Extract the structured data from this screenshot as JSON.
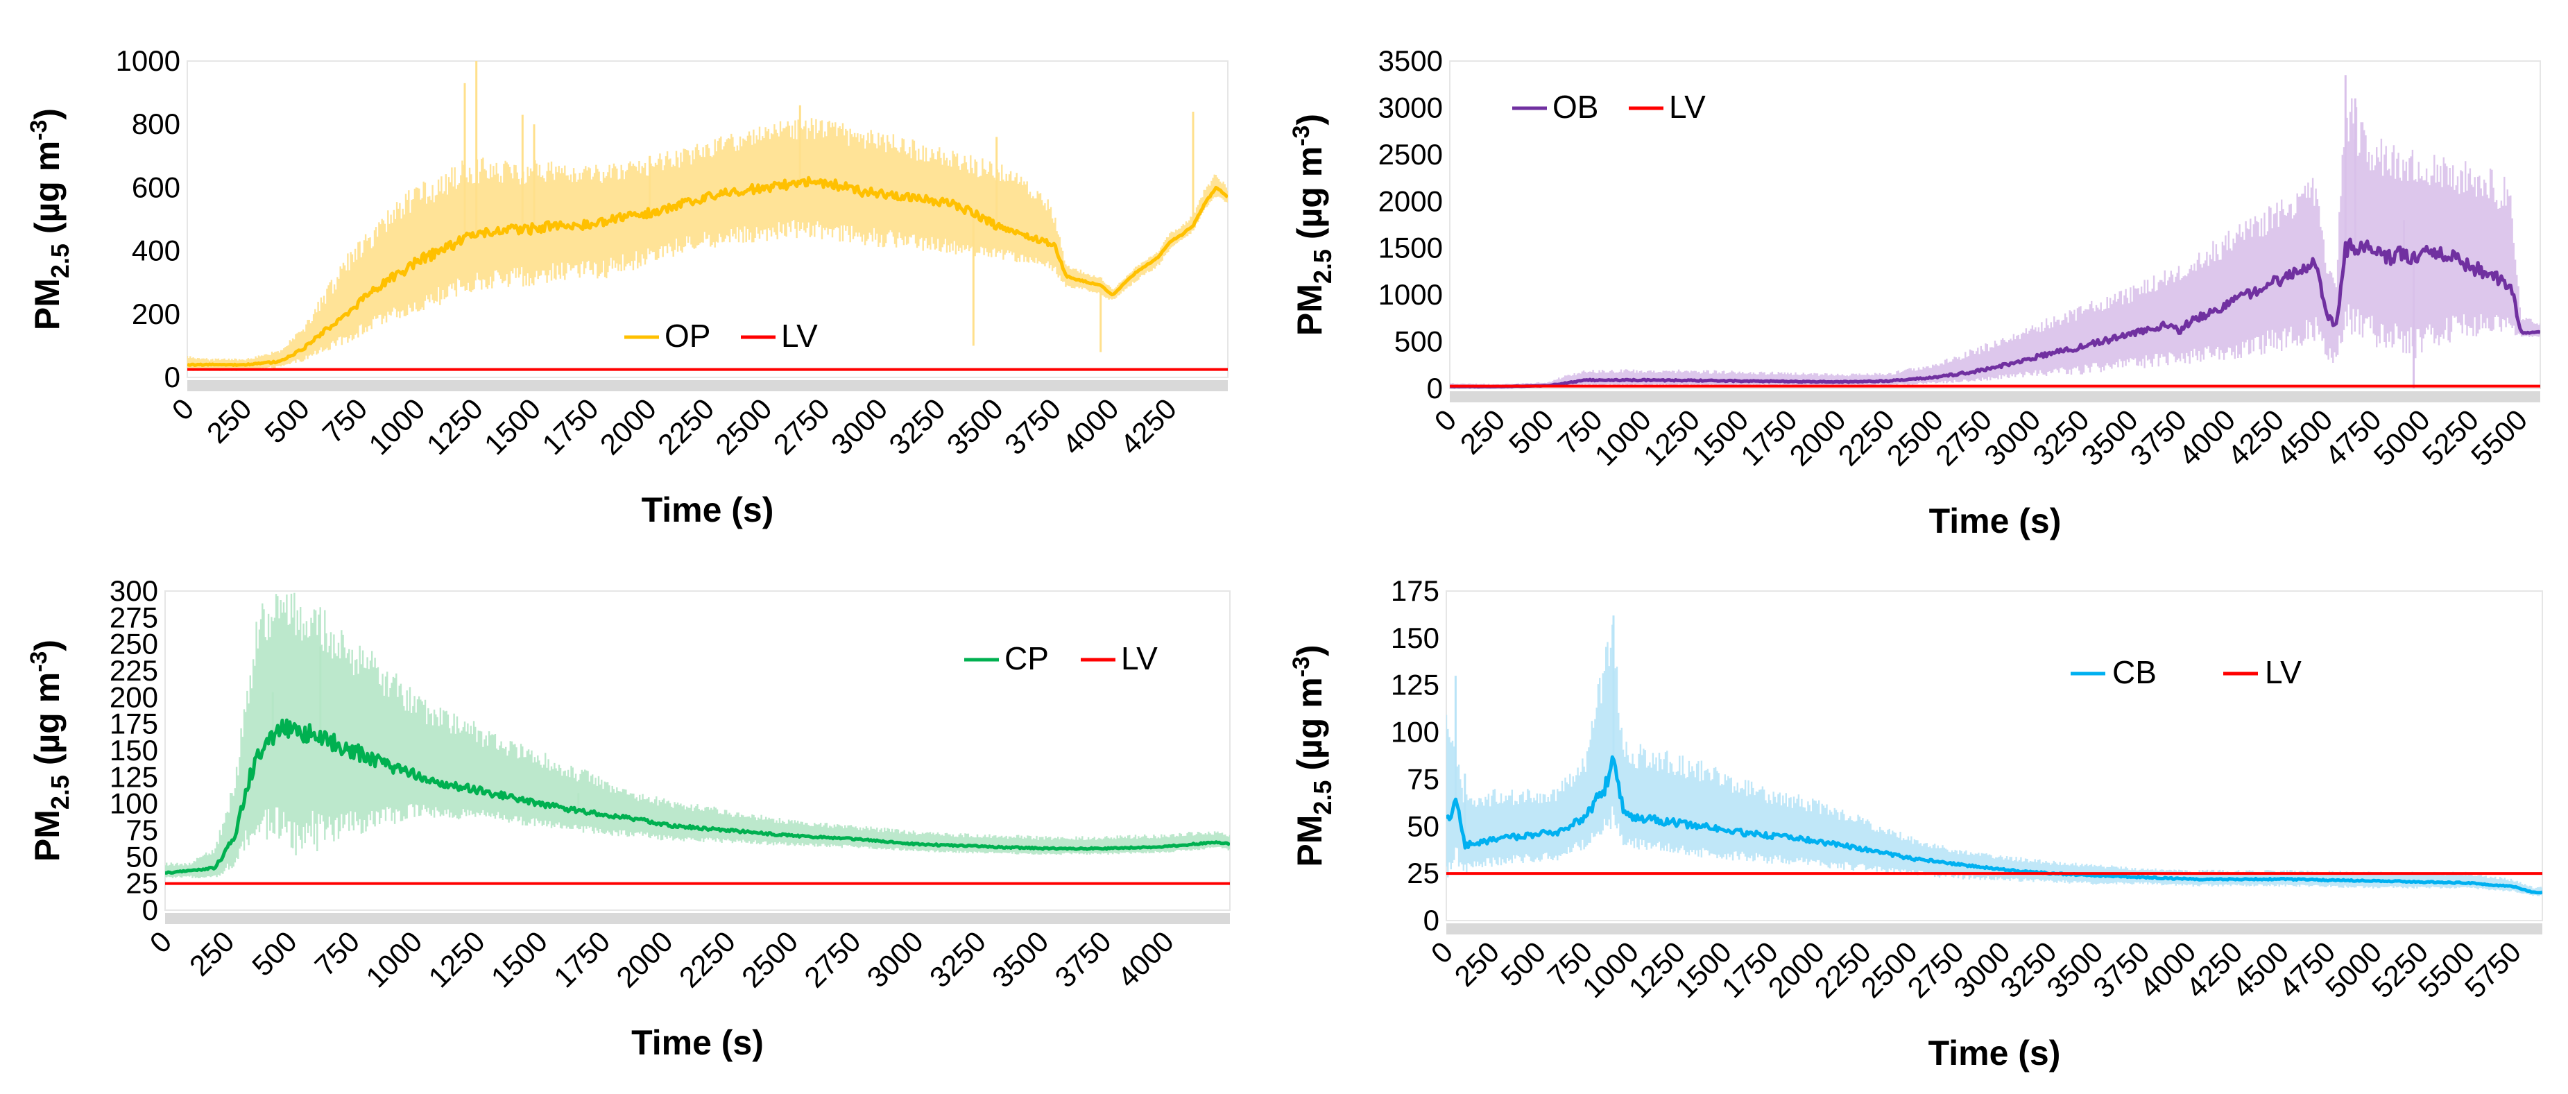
{
  "figure": {
    "panels_count": 4,
    "limit_value_ug_m3": 25
  },
  "chart_data": [
    {
      "id": "op",
      "type": "line",
      "title": "",
      "xlabel": "Time (s)",
      "ylabel_main": "PM",
      "ylabel_sub": "2.5",
      "ylabel_unit_open": " (µg m",
      "ylabel_unit_sup": "-3",
      "ylabel_unit_close": ")",
      "xlim": [
        0,
        4500
      ],
      "ylim": [
        0,
        1000
      ],
      "yticks": [
        "0",
        "200",
        "400",
        "600",
        "800",
        "1000"
      ],
      "xticks": [
        "0",
        "250",
        "500",
        "750",
        "1000",
        "1250",
        "1500",
        "1750",
        "2000",
        "2250",
        "2500",
        "2750",
        "3000",
        "3250",
        "3500",
        "3750",
        "4000",
        "4250"
      ],
      "legend_position": "bottom-center",
      "series": [
        {
          "name": "OP",
          "color": "#FFC000",
          "band_color": "#FFE08C",
          "x": [
            0,
            100,
            250,
            400,
            500,
            600,
            700,
            800,
            900,
            1000,
            1100,
            1200,
            1300,
            1400,
            1500,
            1600,
            1700,
            1800,
            1900,
            2000,
            2100,
            2200,
            2300,
            2400,
            2500,
            2600,
            2700,
            2800,
            2900,
            3000,
            3100,
            3200,
            3300,
            3400,
            3500,
            3600,
            3700,
            3750,
            3800,
            3900,
            3950,
            4000,
            4100,
            4200,
            4250,
            4300,
            4350,
            4400,
            4450,
            4500
          ],
          "values": [
            40,
            40,
            40,
            50,
            90,
            150,
            210,
            270,
            320,
            370,
            400,
            440,
            460,
            465,
            470,
            480,
            480,
            490,
            510,
            520,
            540,
            560,
            580,
            590,
            600,
            610,
            620,
            610,
            590,
            580,
            570,
            560,
            550,
            520,
            480,
            460,
            430,
            420,
            320,
            300,
            290,
            260,
            330,
            380,
            430,
            450,
            480,
            550,
            600,
            570
          ],
          "band_low": [
            20,
            20,
            20,
            30,
            50,
            80,
            110,
            150,
            170,
            200,
            230,
            260,
            280,
            280,
            290,
            300,
            310,
            310,
            330,
            350,
            380,
            400,
            410,
            420,
            430,
            440,
            440,
            430,
            420,
            410,
            400,
            400,
            390,
            380,
            370,
            360,
            350,
            330,
            280,
            270,
            260,
            240,
            300,
            350,
            400,
            430,
            460,
            530,
            570,
            550
          ],
          "band_high": [
            70,
            60,
            60,
            90,
            160,
            280,
            400,
            480,
            560,
            620,
            650,
            690,
            700,
            680,
            690,
            680,
            670,
            680,
            680,
            700,
            720,
            740,
            760,
            780,
            800,
            820,
            820,
            810,
            800,
            780,
            760,
            740,
            720,
            700,
            680,
            650,
            600,
            520,
            360,
            330,
            320,
            280,
            350,
            400,
            460,
            480,
            520,
            600,
            650,
            600
          ],
          "spikes": [
            [
              1250,
              1000
            ],
            [
              1200,
              930
            ],
            [
              1500,
              800
            ],
            [
              1450,
              830
            ],
            [
              2000,
              700
            ],
            [
              2650,
              860
            ],
            [
              3400,
              100
            ],
            [
              3500,
              760
            ],
            [
              3950,
              80
            ],
            [
              4350,
              840
            ]
          ]
        },
        {
          "name": "LV",
          "color": "#FF0000",
          "x": [
            0,
            4500
          ],
          "values": [
            25,
            25
          ]
        }
      ]
    },
    {
      "id": "ob",
      "type": "line",
      "title": "",
      "xlabel": "Time (s)",
      "ylabel_main": "PM",
      "ylabel_sub": "2.5",
      "ylabel_unit_open": " (µg m",
      "ylabel_unit_sup": "-3",
      "ylabel_unit_close": ")",
      "xlim": [
        0,
        5600
      ],
      "ylim": [
        0,
        3500
      ],
      "yticks": [
        "0",
        "500",
        "1000",
        "1500",
        "2000",
        "2500",
        "3000",
        "3500"
      ],
      "xticks": [
        "0",
        "250",
        "500",
        "750",
        "1000",
        "1250",
        "1500",
        "1750",
        "2000",
        "2250",
        "2500",
        "2750",
        "3000",
        "3250",
        "3500",
        "3750",
        "4000",
        "4250",
        "4500",
        "4750",
        "5000",
        "5250",
        "5500"
      ],
      "legend_position": "top-left",
      "series": [
        {
          "name": "OB",
          "color": "#7030A0",
          "band_color": "#D9C1EA",
          "x": [
            0,
            250,
            500,
            600,
            700,
            1000,
            1500,
            2000,
            2250,
            2500,
            2750,
            3000,
            3250,
            3500,
            3700,
            3750,
            3800,
            4000,
            4250,
            4400,
            4450,
            4500,
            4550,
            4600,
            4700,
            4800,
            4900,
            4950,
            5000,
            5100,
            5200,
            5300,
            5400,
            5450,
            5500,
            5600
          ],
          "values": [
            20,
            20,
            30,
            60,
            90,
            90,
            80,
            70,
            80,
            120,
            200,
            330,
            450,
            580,
            700,
            600,
            720,
            900,
            1150,
            1300,
            1350,
            800,
            650,
            1500,
            1500,
            1400,
            1450,
            1400,
            1500,
            1450,
            1350,
            1250,
            1150,
            1100,
            600,
            600
          ],
          "band_low": [
            0,
            0,
            10,
            20,
            30,
            30,
            30,
            30,
            30,
            50,
            80,
            120,
            150,
            200,
            250,
            250,
            260,
            300,
            380,
            450,
            500,
            300,
            250,
            600,
            500,
            400,
            350,
            300,
            400,
            450,
            500,
            550,
            600,
            580,
            550,
            550
          ],
          "band_high": [
            60,
            50,
            70,
            150,
            200,
            210,
            190,
            160,
            170,
            280,
            480,
            700,
            900,
            1100,
            1300,
            1350,
            1400,
            1700,
            2000,
            2200,
            2300,
            1400,
            1200,
            3300,
            2800,
            2700,
            2600,
            2550,
            2550,
            2500,
            2450,
            2400,
            2300,
            2200,
            800,
            700
          ],
          "spikes": [
            [
              4600,
              3350
            ],
            [
              4650,
              3100
            ],
            [
              4950,
              0
            ],
            [
              4900,
              1800
            ]
          ]
        },
        {
          "name": "LV",
          "color": "#FF0000",
          "x": [
            0,
            5600
          ],
          "values": [
            25,
            25
          ]
        }
      ]
    },
    {
      "id": "cp",
      "type": "line",
      "title": "",
      "xlabel": "Time (s)",
      "ylabel_main": "PM",
      "ylabel_sub": "2.5",
      "ylabel_unit_open": " (µg m",
      "ylabel_unit_sup": "-3",
      "ylabel_unit_close": ")",
      "xlim": [
        0,
        4250
      ],
      "ylim": [
        0,
        300
      ],
      "yticks": [
        "0",
        "25",
        "50",
        "75",
        "100",
        "125",
        "150",
        "175",
        "200",
        "225",
        "250",
        "275",
        "300"
      ],
      "xticks": [
        "0",
        "250",
        "500",
        "750",
        "1000",
        "1250",
        "1500",
        "1750",
        "2000",
        "2250",
        "2500",
        "2750",
        "3000",
        "3250",
        "3500",
        "3750",
        "4000"
      ],
      "legend_position": "top-right",
      "series": [
        {
          "name": "CP",
          "color": "#00B050",
          "band_color": "#B5E6C6",
          "x": [
            0,
            100,
            200,
            280,
            330,
            380,
            450,
            500,
            600,
            700,
            800,
            900,
            1000,
            1100,
            1200,
            1300,
            1400,
            1500,
            1600,
            1750,
            1900,
            2000,
            2250,
            2500,
            2750,
            3000,
            3250,
            3500,
            3750,
            4000,
            4100,
            4200,
            4250
          ],
          "values": [
            35,
            37,
            40,
            70,
            120,
            150,
            170,
            170,
            165,
            155,
            145,
            135,
            128,
            120,
            115,
            110,
            105,
            100,
            95,
            90,
            85,
            80,
            75,
            70,
            67,
            62,
            60,
            58,
            58,
            60,
            62,
            64,
            62
          ],
          "band_low": [
            30,
            30,
            30,
            40,
            60,
            70,
            60,
            50,
            55,
            60,
            70,
            80,
            85,
            85,
            85,
            85,
            80,
            78,
            75,
            70,
            68,
            65,
            63,
            60,
            58,
            55,
            53,
            52,
            52,
            54,
            56,
            58,
            56
          ],
          "band_high": [
            45,
            45,
            60,
            130,
            220,
            300,
            300,
            300,
            290,
            270,
            250,
            230,
            205,
            195,
            185,
            170,
            160,
            150,
            140,
            125,
            110,
            105,
            95,
            85,
            80,
            75,
            72,
            70,
            70,
            72,
            74,
            75,
            72
          ],
          "spikes": [
            [
              620,
              248
            ],
            [
              430,
              205
            ],
            [
              1650,
              110
            ]
          ]
        },
        {
          "name": "LV",
          "color": "#FF0000",
          "x": [
            0,
            4250
          ],
          "values": [
            25,
            25
          ]
        }
      ]
    },
    {
      "id": "cb",
      "type": "line",
      "title": "",
      "xlabel": "Time (s)",
      "ylabel_main": "PM",
      "ylabel_sub": "2.5",
      "ylabel_unit_open": " (µg m",
      "ylabel_unit_sup": "-3",
      "ylabel_unit_close": ")",
      "xlim": [
        0,
        5900
      ],
      "ylim": [
        0,
        175
      ],
      "yticks": [
        "0",
        "25",
        "50",
        "75",
        "100",
        "125",
        "150",
        "175"
      ],
      "xticks": [
        "0",
        "250",
        "500",
        "750",
        "1000",
        "1250",
        "1500",
        "1750",
        "2000",
        "2250",
        "2500",
        "2750",
        "3000",
        "3250",
        "3500",
        "3750",
        "4000",
        "4250",
        "4500",
        "4750",
        "5000",
        "5250",
        "5500",
        "5750"
      ],
      "legend_position": "top-right",
      "series": [
        {
          "name": "CB",
          "color": "#00B0F0",
          "band_color": "#B9E4F7",
          "x": [
            0,
            50,
            100,
            200,
            400,
            600,
            750,
            850,
            900,
            950,
            1000,
            1250,
            1500,
            1750,
            2000,
            2250,
            2500,
            2750,
            3000,
            3250,
            3500,
            3750,
            4000,
            4500,
            5000,
            5500,
            5750,
            5850,
            5900
          ],
          "values": [
            50,
            65,
            40,
            42,
            45,
            47,
            55,
            70,
            85,
            60,
            55,
            52,
            48,
            45,
            42,
            38,
            33,
            30,
            27,
            25,
            24,
            23,
            22,
            22,
            21,
            20,
            18,
            15,
            15
          ],
          "band_low": [
            20,
            30,
            25,
            28,
            30,
            32,
            38,
            45,
            50,
            40,
            38,
            35,
            32,
            30,
            28,
            26,
            24,
            22,
            21,
            20,
            19,
            19,
            18,
            18,
            17,
            17,
            15,
            13,
            13
          ],
          "band_high": [
            125,
            90,
            70,
            70,
            70,
            72,
            90,
            150,
            160,
            100,
            95,
            90,
            80,
            70,
            65,
            55,
            45,
            38,
            35,
            32,
            30,
            28,
            27,
            27,
            26,
            26,
            22,
            18,
            18
          ],
          "spikes": [
            [
              50,
              130
            ],
            [
              900,
              162
            ],
            [
              100,
              78
            ]
          ]
        },
        {
          "name": "LV",
          "color": "#FF0000",
          "x": [
            0,
            5900
          ],
          "values": [
            25,
            25
          ]
        }
      ]
    }
  ]
}
